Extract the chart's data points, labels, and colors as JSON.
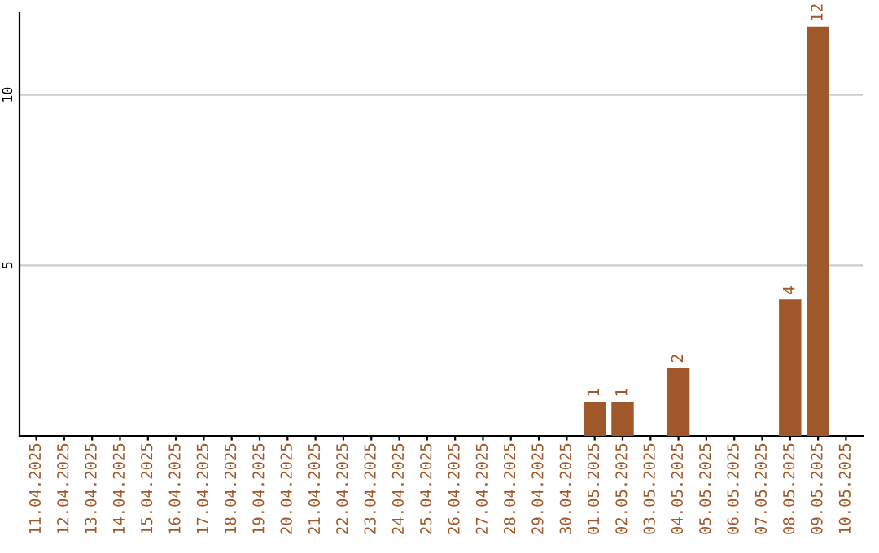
{
  "chart_data": {
    "type": "bar",
    "categories": [
      "11.04.2025",
      "12.04.2025",
      "13.04.2025",
      "14.04.2025",
      "15.04.2025",
      "16.04.2025",
      "17.04.2025",
      "18.04.2025",
      "19.04.2025",
      "20.04.2025",
      "21.04.2025",
      "22.04.2025",
      "23.04.2025",
      "24.04.2025",
      "25.04.2025",
      "26.04.2025",
      "27.04.2025",
      "28.04.2025",
      "29.04.2025",
      "30.04.2025",
      "01.05.2025",
      "02.05.2025",
      "03.05.2025",
      "04.05.2025",
      "05.05.2025",
      "06.05.2025",
      "07.05.2025",
      "08.05.2025",
      "09.05.2025",
      "10.05.2025"
    ],
    "values": [
      0,
      0,
      0,
      0,
      0,
      0,
      0,
      0,
      0,
      0,
      0,
      0,
      0,
      0,
      0,
      0,
      0,
      0,
      0,
      0,
      1,
      1,
      0,
      2,
      0,
      0,
      0,
      4,
      12,
      0
    ],
    "value_labels": [
      null,
      null,
      null,
      null,
      null,
      null,
      null,
      null,
      null,
      null,
      null,
      null,
      null,
      null,
      null,
      null,
      null,
      null,
      null,
      null,
      "1",
      "1",
      null,
      "2",
      null,
      null,
      null,
      "4",
      "12",
      null
    ],
    "color": "#a0582a",
    "ylim": [
      0,
      12.4
    ],
    "yticks": [
      5,
      10
    ],
    "grid": "y"
  }
}
